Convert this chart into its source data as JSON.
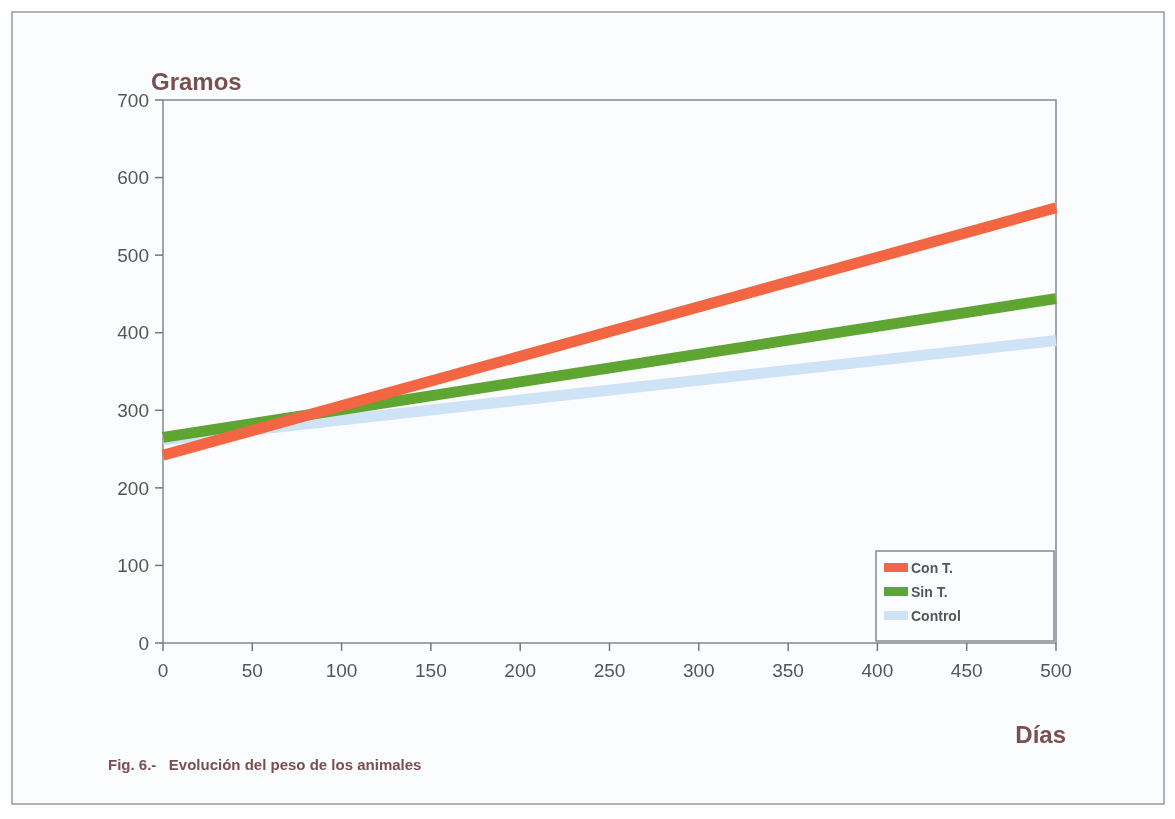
{
  "chart_data": {
    "type": "line",
    "ylabel": "Gramos",
    "xlabel": "Días",
    "annotations": [
      "Fig. 6.-   Evolución del peso de los animales"
    ],
    "xlim": [
      0,
      500
    ],
    "xticks": [
      0,
      50,
      100,
      150,
      200,
      250,
      300,
      350,
      400,
      450,
      500
    ],
    "ylim": [
      0,
      700
    ],
    "yticks": [
      0,
      100,
      200,
      300,
      400,
      500,
      600,
      700
    ],
    "x": [
      0,
      500
    ],
    "grid": false,
    "legend": "bottom right",
    "marker": "none",
    "line_style": "solid",
    "series": [
      {
        "name": "Con T.",
        "color": "#f26644",
        "values": [
          242,
          561
        ]
      },
      {
        "name": "Sin T.",
        "color": "#5ea532",
        "values": [
          265,
          444
        ]
      },
      {
        "name": "Control",
        "color": "#cfe3f6",
        "values": [
          262,
          390
        ]
      }
    ]
  }
}
